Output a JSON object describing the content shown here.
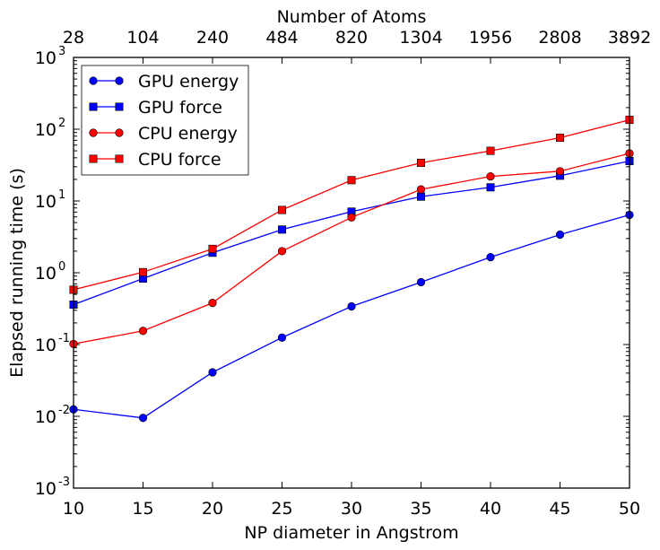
{
  "chart_data": {
    "type": "line",
    "title": "",
    "xlabel": "NP diameter in Angstrom",
    "ylabel": "Elapsed running time (s)",
    "x2label": "Number of Atoms",
    "xlim": [
      10,
      50
    ],
    "ylim": [
      0.001,
      1000
    ],
    "yscale": "log",
    "grid": false,
    "legend_position": "upper-left",
    "x": [
      10,
      15,
      20,
      25,
      30,
      35,
      40,
      45,
      50
    ],
    "x_ticks": [
      "10",
      "15",
      "20",
      "25",
      "30",
      "35",
      "40",
      "45",
      "50"
    ],
    "x2_ticks": [
      "28",
      "104",
      "240",
      "484",
      "820",
      "1304",
      "1956",
      "2808",
      "3892"
    ],
    "y_ticks": [
      {
        "value": 0.001,
        "base": "10",
        "exp": "-3"
      },
      {
        "value": 0.01,
        "base": "10",
        "exp": "-2"
      },
      {
        "value": 0.1,
        "base": "10",
        "exp": "-1"
      },
      {
        "value": 1,
        "base": "10",
        "exp": "0"
      },
      {
        "value": 10,
        "base": "10",
        "exp": "1"
      },
      {
        "value": 100,
        "base": "10",
        "exp": "2"
      },
      {
        "value": 1000,
        "base": "10",
        "exp": "3"
      }
    ],
    "series": [
      {
        "name": "GPU energy",
        "color": "#0000ff",
        "marker": "circle",
        "values": [
          0.0125,
          0.0095,
          0.041,
          0.125,
          0.34,
          0.74,
          1.65,
          3.4,
          6.4
        ]
      },
      {
        "name": "GPU force",
        "color": "#0000ff",
        "marker": "square",
        "values": [
          0.36,
          0.83,
          1.9,
          4.0,
          7.1,
          11.5,
          15.5,
          22.5,
          36.0
        ]
      },
      {
        "name": "CPU energy",
        "color": "#ff0000",
        "marker": "circle",
        "values": [
          0.102,
          0.155,
          0.38,
          2.0,
          5.9,
          14.5,
          22.0,
          26.0,
          46.0
        ]
      },
      {
        "name": "CPU force",
        "color": "#ff0000",
        "marker": "square",
        "values": [
          0.58,
          1.02,
          2.15,
          7.5,
          19.5,
          34.0,
          50.0,
          76.0,
          135.0
        ]
      }
    ]
  }
}
